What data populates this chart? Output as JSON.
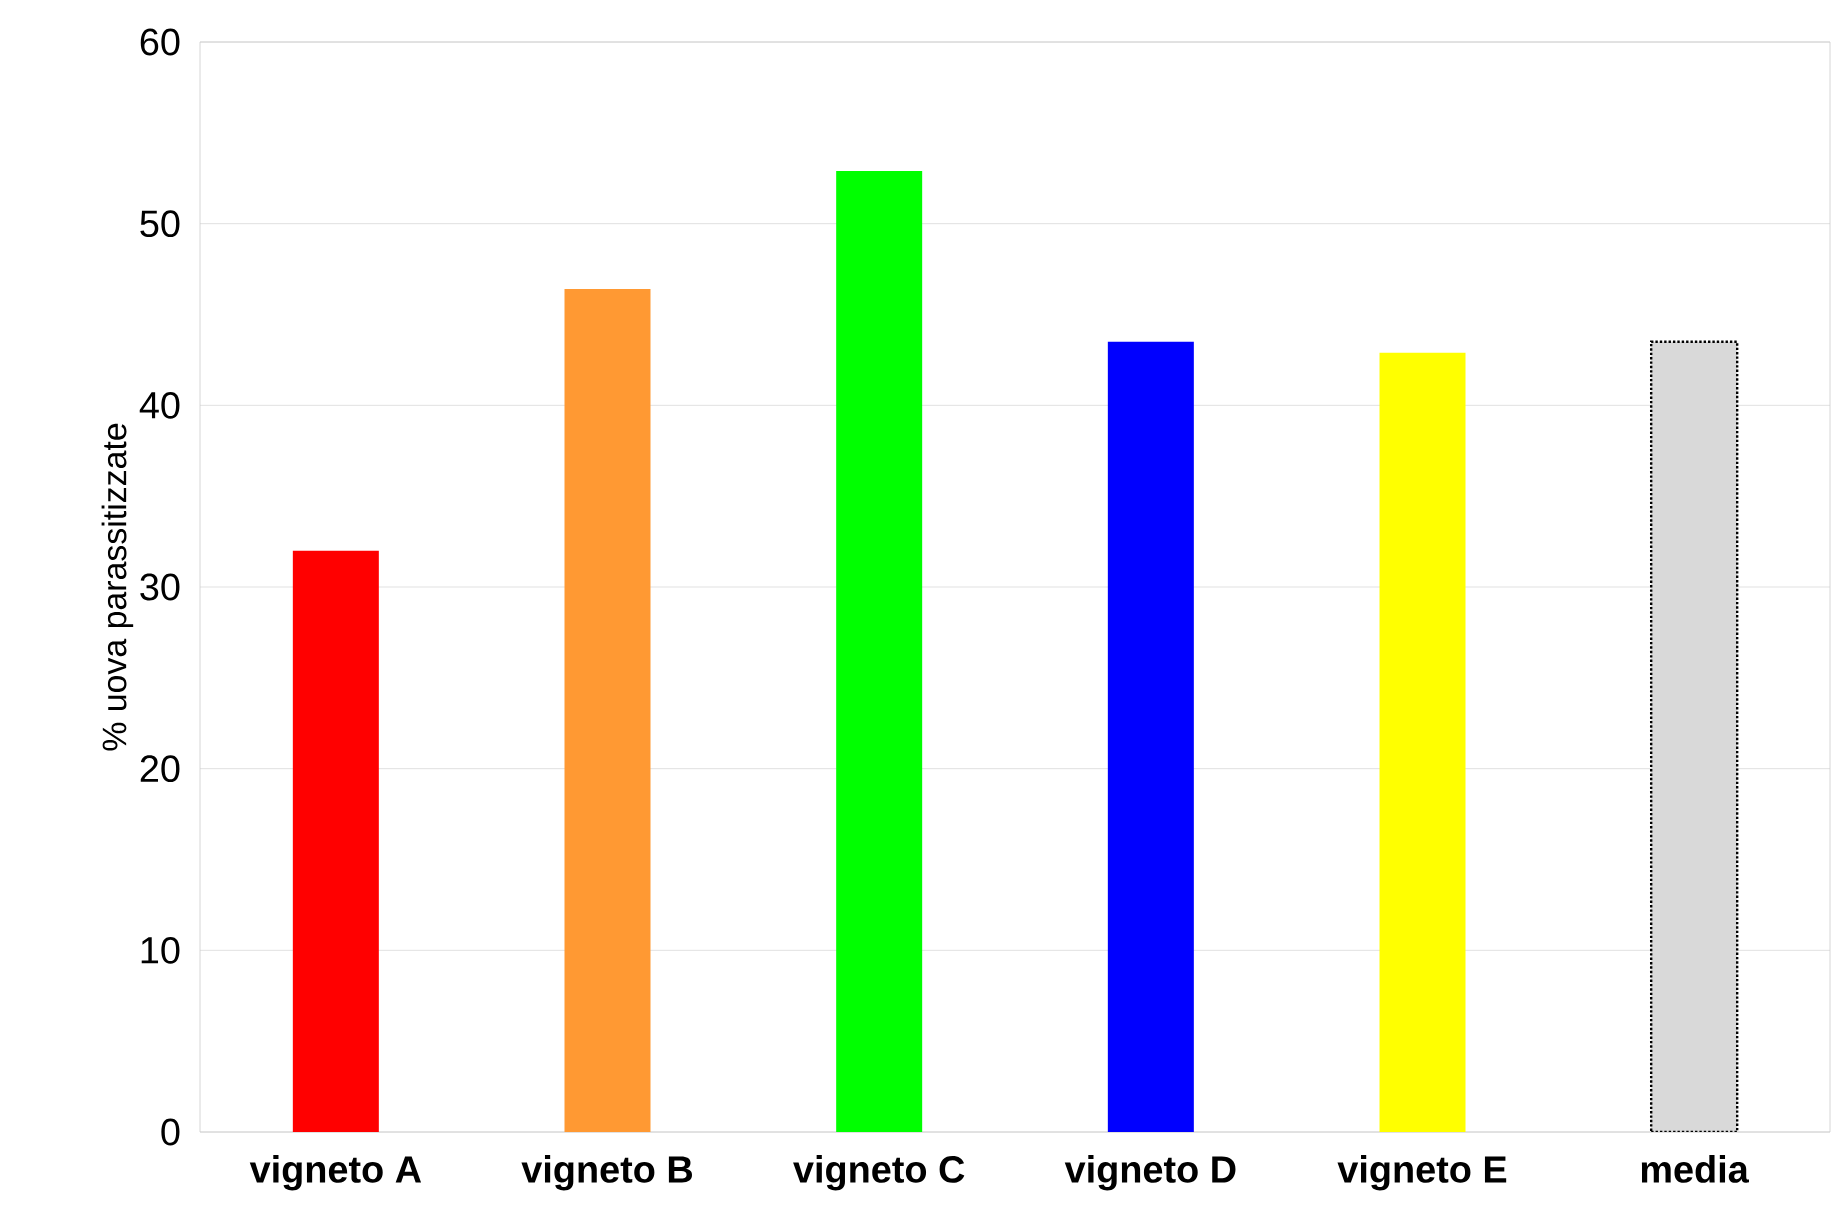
{
  "chart_data": {
    "type": "bar",
    "ylabel": "% uova parassitizzate",
    "categories": [
      "**vigneto A**",
      "**vigneto B**",
      "**vigneto C**",
      "**vigneto D**",
      "**vigneto E**",
      "**media**"
    ],
    "series": [
      {
        "colors": [
          "#ff0000",
          "#ff9933",
          "#00ff00",
          "#0000ff",
          "#ffff00",
          "#d9d9d9"
        ],
        "values": [
          32.0,
          46.4,
          52.9,
          43.5,
          42.9,
          null
        ]
      },
      {
        "color": "#d9d9d9",
        "line_style": "dotted",
        "values": [
          null,
          null,
          null,
          null,
          null,
          43.5
        ]
      }
    ],
    "ylim": [
      0,
      60
    ],
    "yticks": [
      0,
      10,
      20,
      30,
      40,
      50,
      60
    ],
    "grid": "y"
  }
}
